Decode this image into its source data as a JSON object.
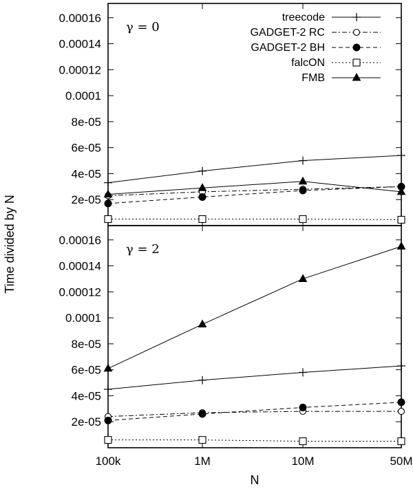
{
  "chart_data": {
    "type": "line",
    "xlabel": "N",
    "ylabel": "Time divided by N",
    "x_categories": [
      "100k",
      "1M",
      "10M",
      "50M"
    ],
    "yticks": [
      "2e-05",
      "4e-05",
      "6e-05",
      "8e-05",
      "0.0001",
      "0.00012",
      "0.00014",
      "0.00016"
    ],
    "ylim": [
      0.0,
      0.000171
    ],
    "legend_position": "top-right",
    "panels": [
      {
        "label": "γ = 0",
        "series": [
          {
            "name": "treecode",
            "marker": "plus",
            "dash": "solid",
            "values": [
              3.3e-05,
              4.2e-05,
              5e-05,
              5.4e-05
            ]
          },
          {
            "name": "GADGET-2 RC",
            "marker": "circle-open",
            "dash": "dashdot",
            "values": [
              2.3e-05,
              2.6e-05,
              2.8e-05,
              3e-05
            ]
          },
          {
            "name": "GADGET-2 BH",
            "marker": "circle-filled",
            "dash": "dashed",
            "values": [
              1.7e-05,
              2.2e-05,
              2.7e-05,
              3e-05
            ]
          },
          {
            "name": "falcON",
            "marker": "square-open",
            "dash": "dotted",
            "values": [
              5e-06,
              5e-06,
              5e-06,
              4.5e-06
            ]
          },
          {
            "name": "FMB",
            "marker": "triangle-filled",
            "dash": "solid",
            "values": [
              2.4e-05,
              2.9e-05,
              3.4e-05,
              2.6e-05
            ]
          }
        ]
      },
      {
        "label": "γ = 2",
        "series": [
          {
            "name": "treecode",
            "marker": "plus",
            "dash": "solid",
            "values": [
              4.5e-05,
              5.2e-05,
              5.8e-05,
              6.3e-05
            ]
          },
          {
            "name": "GADGET-2 RC",
            "marker": "circle-open",
            "dash": "dashdot",
            "values": [
              2.4e-05,
              2.7e-05,
              2.8e-05,
              2.8e-05
            ]
          },
          {
            "name": "GADGET-2 BH",
            "marker": "circle-filled",
            "dash": "dashed",
            "values": [
              2.1e-05,
              2.6e-05,
              3.1e-05,
              3.5e-05
            ]
          },
          {
            "name": "falcON",
            "marker": "square-open",
            "dash": "dotted",
            "values": [
              6e-06,
              6e-06,
              5e-06,
              5e-06
            ]
          },
          {
            "name": "FMB",
            "marker": "triangle-filled",
            "dash": "solid",
            "values": [
              6.1e-05,
              9.5e-05,
              0.00013,
              0.000155
            ]
          }
        ]
      }
    ]
  }
}
